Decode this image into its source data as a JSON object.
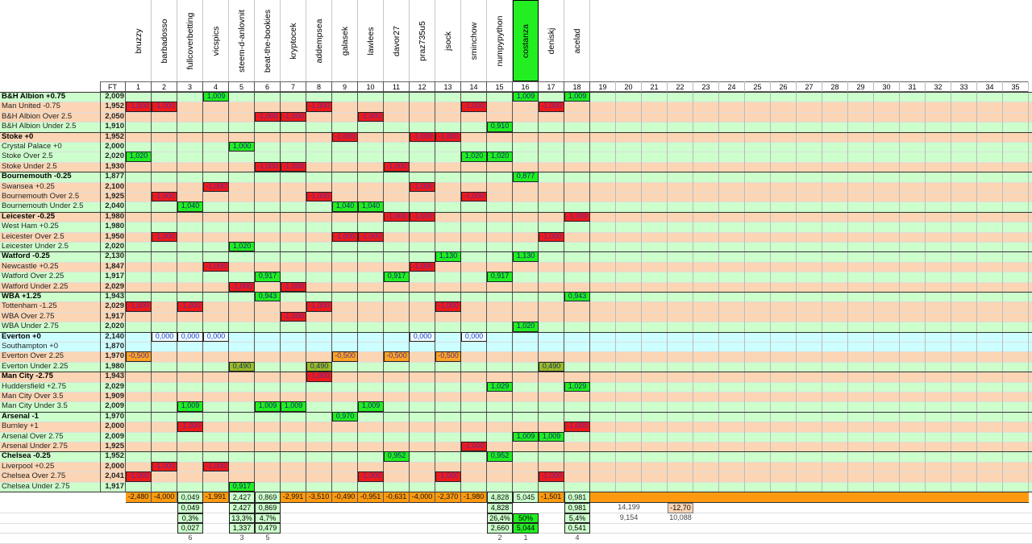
{
  "header": {
    "ft_label": "FT",
    "players": [
      "bruzzy",
      "barbadosso",
      "fullcoverbetting",
      "vicspics",
      "steem-d-anlovnit",
      "beat-the-bookies",
      "kryptocek",
      "addempsea",
      "galasek",
      "lawlees",
      "davor27",
      "praz735u5",
      "jsock",
      "sminchow",
      "numpypython",
      "costanza",
      "deniskj",
      "acelad"
    ],
    "highlighted_player": "costanza",
    "column_numbers": [
      "1",
      "2",
      "3",
      "4",
      "5",
      "6",
      "7",
      "8",
      "9",
      "10",
      "11",
      "12",
      "13",
      "14",
      "15",
      "16",
      "17",
      "18",
      "19",
      "20",
      "21",
      "22",
      "23",
      "24",
      "25",
      "26",
      "27",
      "28",
      "29",
      "30",
      "31",
      "32",
      "33",
      "34",
      "35"
    ]
  },
  "colors": {
    "win_row": "#ccffcc",
    "loss_row": "#fcd5b4",
    "push_row": "#ccffff",
    "win": "#22ee22",
    "loss": "#ee1a1a",
    "total": "#ff9a10"
  },
  "rows": [
    {
      "label": "B&H Albion +0.75",
      "bold": true,
      "ft": "2,009",
      "bg": "g",
      "cells": [
        [
          4,
          "1,009",
          "win"
        ],
        [
          16,
          "1,009",
          "win"
        ],
        [
          18,
          "1,009",
          "win"
        ]
      ]
    },
    {
      "label": "Man United -0.75",
      "bold": false,
      "ft": "1,952",
      "bg": "o",
      "cells": [
        [
          1,
          "-1,000",
          "loss"
        ],
        [
          2,
          "-1,000",
          "loss"
        ],
        [
          8,
          "-1,000",
          "loss"
        ],
        [
          14,
          "-1,000",
          "loss"
        ],
        [
          17,
          "-1,000",
          "loss"
        ]
      ]
    },
    {
      "label": "B&H Albion Over 2.5",
      "bold": false,
      "ft": "2,050",
      "bg": "o",
      "cells": [
        [
          6,
          "-1,000",
          "loss"
        ],
        [
          7,
          "-1,000",
          "loss"
        ],
        [
          10,
          "-1,000",
          "loss"
        ]
      ]
    },
    {
      "label": "B&H Albion Under 2.5",
      "bold": false,
      "ft": "1,910",
      "bg": "g",
      "cells": [
        [
          15,
          "0,910",
          "win"
        ]
      ]
    },
    {
      "label": "Stoke +0",
      "bold": true,
      "ft": "1,952",
      "bg": "o",
      "cells": [
        [
          9,
          "-1,000",
          "loss"
        ],
        [
          12,
          "-1,000",
          "loss"
        ],
        [
          13,
          "-1,000",
          "loss"
        ]
      ]
    },
    {
      "label": "Crystal Palace +0",
      "bold": false,
      "ft": "2,000",
      "bg": "g",
      "cells": [
        [
          5,
          "1,000",
          "win"
        ]
      ]
    },
    {
      "label": "Stoke Over 2.5",
      "bold": false,
      "ft": "2,020",
      "bg": "g",
      "cells": [
        [
          1,
          "1,020",
          "win"
        ],
        [
          14,
          "1,020",
          "win"
        ],
        [
          15,
          "1,020",
          "win"
        ]
      ]
    },
    {
      "label": "Stoke Under 2.5",
      "bold": false,
      "ft": "1,930",
      "bg": "o",
      "cells": [
        [
          6,
          "-1,000",
          "loss"
        ],
        [
          7,
          "-1,000",
          "loss"
        ],
        [
          11,
          "-1,000",
          "loss"
        ]
      ]
    },
    {
      "label": "Bournemouth -0.25",
      "bold": true,
      "ft": "1,877",
      "bg": "g",
      "cells": [
        [
          16,
          "0,877",
          "win"
        ]
      ]
    },
    {
      "label": "Swansea +0.25",
      "bold": false,
      "ft": "2,100",
      "bg": "o",
      "cells": [
        [
          4,
          "-1,000",
          "loss"
        ],
        [
          12,
          "-1,000",
          "loss"
        ]
      ]
    },
    {
      "label": "Bournemouth Over 2.5",
      "bold": false,
      "ft": "1,925",
      "bg": "o",
      "cells": [
        [
          2,
          "-1,000",
          "loss"
        ],
        [
          8,
          "-1,000",
          "loss"
        ],
        [
          14,
          "-1,000",
          "loss"
        ]
      ]
    },
    {
      "label": "Bournemouth Under 2.5",
      "bold": false,
      "ft": "2,040",
      "bg": "g",
      "cells": [
        [
          3,
          "1,040",
          "win"
        ],
        [
          9,
          "1,040",
          "win"
        ],
        [
          10,
          "1,040",
          "win"
        ]
      ]
    },
    {
      "label": "Leicester -0.25",
      "bold": true,
      "ft": "1,980",
      "bg": "o",
      "cells": [
        [
          11,
          "-1,000",
          "loss"
        ],
        [
          12,
          "-1,000",
          "loss"
        ],
        [
          18,
          "-1,000",
          "loss"
        ]
      ]
    },
    {
      "label": "West Ham +0.25",
      "bold": false,
      "ft": "1,980",
      "bg": "g",
      "cells": []
    },
    {
      "label": "Leicester Over 2.5",
      "bold": false,
      "ft": "1,950",
      "bg": "o",
      "cells": [
        [
          2,
          "-1,000",
          "loss"
        ],
        [
          9,
          "-1,000",
          "loss"
        ],
        [
          10,
          "-1,000",
          "loss"
        ],
        [
          17,
          "-1,000",
          "loss"
        ]
      ]
    },
    {
      "label": "Leicester Under 2.5",
      "bold": false,
      "ft": "2,020",
      "bg": "g",
      "cells": [
        [
          5,
          "1,020",
          "win"
        ]
      ]
    },
    {
      "label": "Watford -0.25",
      "bold": true,
      "ft": "2,130",
      "bg": "g",
      "cells": [
        [
          13,
          "1,130",
          "win"
        ],
        [
          16,
          "1,130",
          "win"
        ]
      ]
    },
    {
      "label": "Newcastle +0.25",
      "bold": false,
      "ft": "1,847",
      "bg": "o",
      "cells": [
        [
          4,
          "-1,000",
          "loss"
        ],
        [
          12,
          "-1,000",
          "loss"
        ]
      ]
    },
    {
      "label": "Watford Over 2.25",
      "bold": false,
      "ft": "1,917",
      "bg": "g",
      "cells": [
        [
          6,
          "0,917",
          "win"
        ],
        [
          11,
          "0,917",
          "win"
        ],
        [
          15,
          "0,917",
          "win"
        ]
      ]
    },
    {
      "label": "Watford Under 2.25",
      "bold": false,
      "ft": "2,029",
      "bg": "o",
      "cells": [
        [
          5,
          "-1,000",
          "loss"
        ],
        [
          7,
          "-1,000",
          "loss"
        ]
      ]
    },
    {
      "label": "WBA +1.25",
      "bold": true,
      "ft": "1,943",
      "bg": "g",
      "cells": [
        [
          6,
          "0,943",
          "win"
        ],
        [
          18,
          "0,943",
          "win"
        ]
      ]
    },
    {
      "label": "Tottenham -1.25",
      "bold": false,
      "ft": "2,029",
      "bg": "o",
      "cells": [
        [
          1,
          "-1,000",
          "loss"
        ],
        [
          3,
          "-1,000",
          "loss"
        ],
        [
          8,
          "-1,000",
          "loss"
        ],
        [
          13,
          "-1,000",
          "loss"
        ]
      ]
    },
    {
      "label": "WBA Over 2.75",
      "bold": false,
      "ft": "1,917",
      "bg": "o",
      "cells": [
        [
          7,
          "-1,000",
          "loss"
        ]
      ]
    },
    {
      "label": "WBA Under 2.75",
      "bold": false,
      "ft": "2,020",
      "bg": "g",
      "cells": [
        [
          16,
          "1,020",
          "win"
        ]
      ]
    },
    {
      "label": "Everton +0",
      "bold": true,
      "ft": "2,140",
      "bg": "c",
      "cells": [
        [
          2,
          "0,000",
          "push"
        ],
        [
          3,
          "0,000",
          "push"
        ],
        [
          4,
          "0,000",
          "push"
        ],
        [
          12,
          "0,000",
          "push"
        ],
        [
          14,
          "0,000",
          "push"
        ]
      ]
    },
    {
      "label": "Southampton +0",
      "bold": false,
      "ft": "1,870",
      "bg": "c",
      "cells": []
    },
    {
      "label": "Everton Over 2.25",
      "bold": false,
      "ft": "1,970",
      "bg": "o",
      "cells": [
        [
          1,
          "-0,500",
          "halfloss"
        ],
        [
          9,
          "-0,500",
          "halfloss"
        ],
        [
          11,
          "-0,500",
          "halfloss"
        ],
        [
          13,
          "-0,500",
          "halfloss"
        ]
      ]
    },
    {
      "label": "Everton Under 2.25",
      "bold": false,
      "ft": "1,980",
      "bg": "g",
      "cells": [
        [
          5,
          "0,490",
          "halfwin"
        ],
        [
          8,
          "0,490",
          "halfwin"
        ],
        [
          17,
          "0,490",
          "halfwin"
        ]
      ]
    },
    {
      "label": "Man City -2.75",
      "bold": true,
      "ft": "1,943",
      "bg": "o",
      "cells": [
        [
          8,
          "-1,000",
          "loss"
        ]
      ]
    },
    {
      "label": "Huddersfield +2.75",
      "bold": false,
      "ft": "2,029",
      "bg": "g",
      "cells": [
        [
          15,
          "1,029",
          "win"
        ],
        [
          18,
          "1,029",
          "win"
        ]
      ]
    },
    {
      "label": "Man City Over 3.5",
      "bold": false,
      "ft": "1,909",
      "bg": "o",
      "cells": []
    },
    {
      "label": "Man City Under 3.5",
      "bold": false,
      "ft": "2,009",
      "bg": "g",
      "cells": [
        [
          3,
          "1,009",
          "win"
        ],
        [
          6,
          "1,009",
          "win"
        ],
        [
          7,
          "1,009",
          "win"
        ],
        [
          10,
          "1,009",
          "win"
        ]
      ]
    },
    {
      "label": "Arsenal -1",
      "bold": true,
      "ft": "1,970",
      "bg": "g",
      "cells": [
        [
          9,
          "0,970",
          "win"
        ]
      ]
    },
    {
      "label": "Burnley +1",
      "bold": false,
      "ft": "2,000",
      "bg": "o",
      "cells": [
        [
          3,
          "-1,000",
          "loss"
        ],
        [
          18,
          "-1,000",
          "loss"
        ]
      ]
    },
    {
      "label": "Arsenal Over 2.75",
      "bold": false,
      "ft": "2,009",
      "bg": "g",
      "cells": [
        [
          16,
          "1,009",
          "win"
        ],
        [
          17,
          "1,009",
          "win"
        ]
      ]
    },
    {
      "label": "Arsenal Under 2.75",
      "bold": false,
      "ft": "1,925",
      "bg": "o",
      "cells": [
        [
          14,
          "-1,000",
          "loss"
        ]
      ]
    },
    {
      "label": "Chelsea -0.25",
      "bold": true,
      "ft": "1,952",
      "bg": "g",
      "cells": [
        [
          11,
          "0,952",
          "win"
        ],
        [
          15,
          "0,952",
          "win"
        ]
      ]
    },
    {
      "label": "Liverpool +0.25",
      "bold": false,
      "ft": "2,000",
      "bg": "o",
      "cells": [
        [
          2,
          "-1,000",
          "loss"
        ],
        [
          4,
          "-1,000",
          "loss"
        ]
      ]
    },
    {
      "label": "Chelsea Over 2.75",
      "bold": false,
      "ft": "2,041",
      "bg": "o",
      "cells": [
        [
          1,
          "-1,000",
          "loss"
        ],
        [
          10,
          "-1,000",
          "loss"
        ],
        [
          13,
          "-1,000",
          "loss"
        ],
        [
          17,
          "-1,000",
          "loss"
        ]
      ]
    },
    {
      "label": "Chelsea Under 2.75",
      "bold": false,
      "ft": "1,917",
      "bg": "g",
      "cells": [
        [
          5,
          "0,917",
          "win"
        ]
      ]
    }
  ],
  "totals": [
    "-2,480",
    "-4,000",
    "0,049",
    "-1,991",
    "2,427",
    "0,869",
    "-2,991",
    "-3,510",
    "-0,490",
    "-0,951",
    "-0,631",
    "-4,000",
    "-2,370",
    "-1,980",
    "4,828",
    "5,045",
    "-1,501",
    "0,981"
  ],
  "summary_rows": [
    [
      [
        3,
        "0,049",
        "box"
      ],
      [
        5,
        "2,427",
        "box"
      ],
      [
        6,
        "0,869",
        "box"
      ],
      [
        15,
        "4,828",
        "box"
      ],
      [
        18,
        "0,981",
        "box"
      ],
      [
        20,
        "14,199",
        "plain"
      ],
      [
        22,
        "-12,70",
        "peach"
      ]
    ],
    [
      [
        3,
        "0,3%",
        "box"
      ],
      [
        5,
        "13,3%",
        "box"
      ],
      [
        6,
        "4,7%",
        "box"
      ],
      [
        15,
        "26,4%",
        "box"
      ],
      [
        16,
        "50%",
        "hot"
      ],
      [
        18,
        "5,4%",
        "box"
      ],
      [
        20,
        "9,154",
        "plain"
      ],
      [
        22,
        "10,088",
        "plain"
      ]
    ],
    [
      [
        3,
        "0,027",
        "box"
      ],
      [
        5,
        "1,337",
        "box"
      ],
      [
        6,
        "0,479",
        "box"
      ],
      [
        15,
        "2,660",
        "box"
      ],
      [
        16,
        "5,044",
        "hot"
      ],
      [
        18,
        "0,541",
        "box"
      ]
    ],
    [
      [
        3,
        "6",
        "plain"
      ],
      [
        5,
        "3",
        "plain"
      ],
      [
        6,
        "5",
        "plain"
      ],
      [
        15,
        "2",
        "plain"
      ],
      [
        16,
        "1",
        "plain"
      ],
      [
        18,
        "4",
        "plain"
      ]
    ]
  ]
}
